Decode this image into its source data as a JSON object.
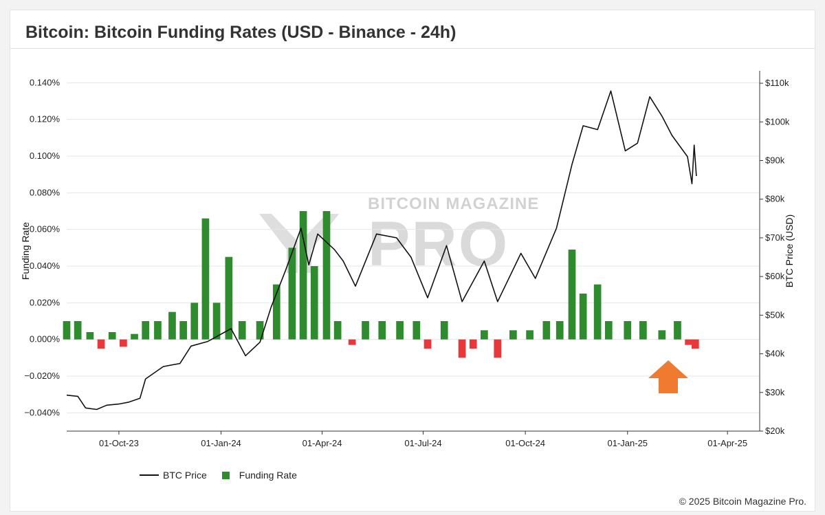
{
  "header": {
    "title": "Bitcoin: Bitcoin Funding Rates (USD - Binance - 24h)"
  },
  "watermark": {
    "top_text": "BITCOIN MAGAZINE",
    "big_text": "PRO"
  },
  "legend": {
    "price_label": "BTC Price",
    "funding_label": "Funding Rate"
  },
  "footer": {
    "copyright": "© 2025 Bitcoin Magazine Pro."
  },
  "colors": {
    "price": "#111111",
    "positive": "#2e8b2e",
    "negative": "#e8383a",
    "arrow": "#f07a30",
    "grid": "#e6e6e6"
  },
  "chart_data": {
    "type": "bar+line",
    "ylabel_left": "Funding Rate",
    "ylabel_right": "BTC Price (USD)",
    "left_axis": {
      "range": [
        -0.05,
        0.145
      ],
      "ticks": [
        0.14,
        0.12,
        0.1,
        0.08,
        0.06,
        0.04,
        0.02,
        0.0,
        -0.02,
        -0.04
      ],
      "tick_labels": [
        "0.140%",
        "0.120%",
        "0.100%",
        "0.080%",
        "0.060%",
        "0.040%",
        "0.020%",
        "0.000%",
        "−0.020%",
        "−0.040%"
      ]
    },
    "right_axis": {
      "range": [
        20000,
        112500
      ],
      "ticks": [
        110000,
        100000,
        90000,
        80000,
        70000,
        60000,
        50000,
        40000,
        30000,
        20000
      ],
      "tick_labels": [
        "$110k",
        "$100k",
        "$90k",
        "$80k",
        "$70k",
        "$60k",
        "$50k",
        "$40k",
        "$30k",
        "$20k"
      ]
    },
    "x_axis": {
      "start": "2023-08-15",
      "end": "2025-04-30",
      "ticks": [
        "2023-10-01",
        "2024-01-01",
        "2024-04-01",
        "2024-07-01",
        "2024-10-01",
        "2025-01-01",
        "2025-04-01"
      ],
      "tick_labels": [
        "01-Oct-23",
        "01-Jan-24",
        "01-Apr-24",
        "01-Jul-24",
        "01-Oct-24",
        "01-Jan-25",
        "01-Apr-25"
      ]
    },
    "btc_price": [
      [
        "2023-08-15",
        29300
      ],
      [
        "2023-08-25",
        29000
      ],
      [
        "2023-09-01",
        26000
      ],
      [
        "2023-09-11",
        25600
      ],
      [
        "2023-09-20",
        26700
      ],
      [
        "2023-10-01",
        27000
      ],
      [
        "2023-10-10",
        27500
      ],
      [
        "2023-10-20",
        28500
      ],
      [
        "2023-10-25",
        33500
      ],
      [
        "2023-11-10",
        36700
      ],
      [
        "2023-11-25",
        37500
      ],
      [
        "2023-12-05",
        42000
      ],
      [
        "2023-12-20",
        43200
      ],
      [
        "2024-01-10",
        46500
      ],
      [
        "2024-01-23",
        39500
      ],
      [
        "2024-02-05",
        43000
      ],
      [
        "2024-02-15",
        52000
      ],
      [
        "2024-02-28",
        61500
      ],
      [
        "2024-03-13",
        72500
      ],
      [
        "2024-03-20",
        63000
      ],
      [
        "2024-03-28",
        71000
      ],
      [
        "2024-04-12",
        67000
      ],
      [
        "2024-04-20",
        64000
      ],
      [
        "2024-05-01",
        57500
      ],
      [
        "2024-05-20",
        71000
      ],
      [
        "2024-06-07",
        70000
      ],
      [
        "2024-06-20",
        65000
      ],
      [
        "2024-07-05",
        54500
      ],
      [
        "2024-07-22",
        68000
      ],
      [
        "2024-08-05",
        53500
      ],
      [
        "2024-08-25",
        64000
      ],
      [
        "2024-09-06",
        53500
      ],
      [
        "2024-09-27",
        66000
      ],
      [
        "2024-10-10",
        59500
      ],
      [
        "2024-10-29",
        72500
      ],
      [
        "2024-11-12",
        89000
      ],
      [
        "2024-11-22",
        99000
      ],
      [
        "2024-12-05",
        98000
      ],
      [
        "2024-12-17",
        108000
      ],
      [
        "2024-12-30",
        92500
      ],
      [
        "2025-01-10",
        94500
      ],
      [
        "2025-01-21",
        106500
      ],
      [
        "2025-02-01",
        101500
      ],
      [
        "2025-02-10",
        96500
      ],
      [
        "2025-02-24",
        91000
      ],
      [
        "2025-02-28",
        84000
      ],
      [
        "2025-03-02",
        94000
      ],
      [
        "2025-03-04",
        86000
      ]
    ],
    "funding_rate": [
      [
        "2023-08-15",
        0.01
      ],
      [
        "2023-08-25",
        0.01
      ],
      [
        "2023-09-05",
        0.004
      ],
      [
        "2023-09-15",
        -0.005
      ],
      [
        "2023-09-25",
        0.004
      ],
      [
        "2023-10-05",
        -0.004
      ],
      [
        "2023-10-15",
        0.003
      ],
      [
        "2023-10-25",
        0.01
      ],
      [
        "2023-11-05",
        0.01
      ],
      [
        "2023-11-18",
        0.015
      ],
      [
        "2023-11-28",
        0.01
      ],
      [
        "2023-12-08",
        0.02
      ],
      [
        "2023-12-18",
        0.066
      ],
      [
        "2023-12-28",
        0.02
      ],
      [
        "2024-01-08",
        0.045
      ],
      [
        "2024-01-20",
        0.01
      ],
      [
        "2024-02-05",
        0.01
      ],
      [
        "2024-02-20",
        0.03
      ],
      [
        "2024-03-05",
        0.05
      ],
      [
        "2024-03-15",
        0.07
      ],
      [
        "2024-03-25",
        0.04
      ],
      [
        "2024-04-05",
        0.07
      ],
      [
        "2024-04-15",
        0.01
      ],
      [
        "2024-04-28",
        -0.003
      ],
      [
        "2024-05-10",
        0.01
      ],
      [
        "2024-05-25",
        0.01
      ],
      [
        "2024-06-10",
        0.01
      ],
      [
        "2024-06-25",
        0.01
      ],
      [
        "2024-07-05",
        -0.005
      ],
      [
        "2024-07-20",
        0.01
      ],
      [
        "2024-08-05",
        -0.01
      ],
      [
        "2024-08-15",
        -0.005
      ],
      [
        "2024-08-25",
        0.005
      ],
      [
        "2024-09-06",
        -0.01
      ],
      [
        "2024-09-20",
        0.005
      ],
      [
        "2024-10-05",
        0.005
      ],
      [
        "2024-10-20",
        0.01
      ],
      [
        "2024-11-01",
        0.01
      ],
      [
        "2024-11-12",
        0.049
      ],
      [
        "2024-11-22",
        0.025
      ],
      [
        "2024-12-05",
        0.03
      ],
      [
        "2024-12-15",
        0.01
      ],
      [
        "2025-01-01",
        0.01
      ],
      [
        "2025-01-15",
        0.01
      ],
      [
        "2025-02-01",
        0.005
      ],
      [
        "2025-02-15",
        0.01
      ],
      [
        "2025-02-25",
        -0.003
      ],
      [
        "2025-03-03",
        -0.005
      ]
    ]
  }
}
